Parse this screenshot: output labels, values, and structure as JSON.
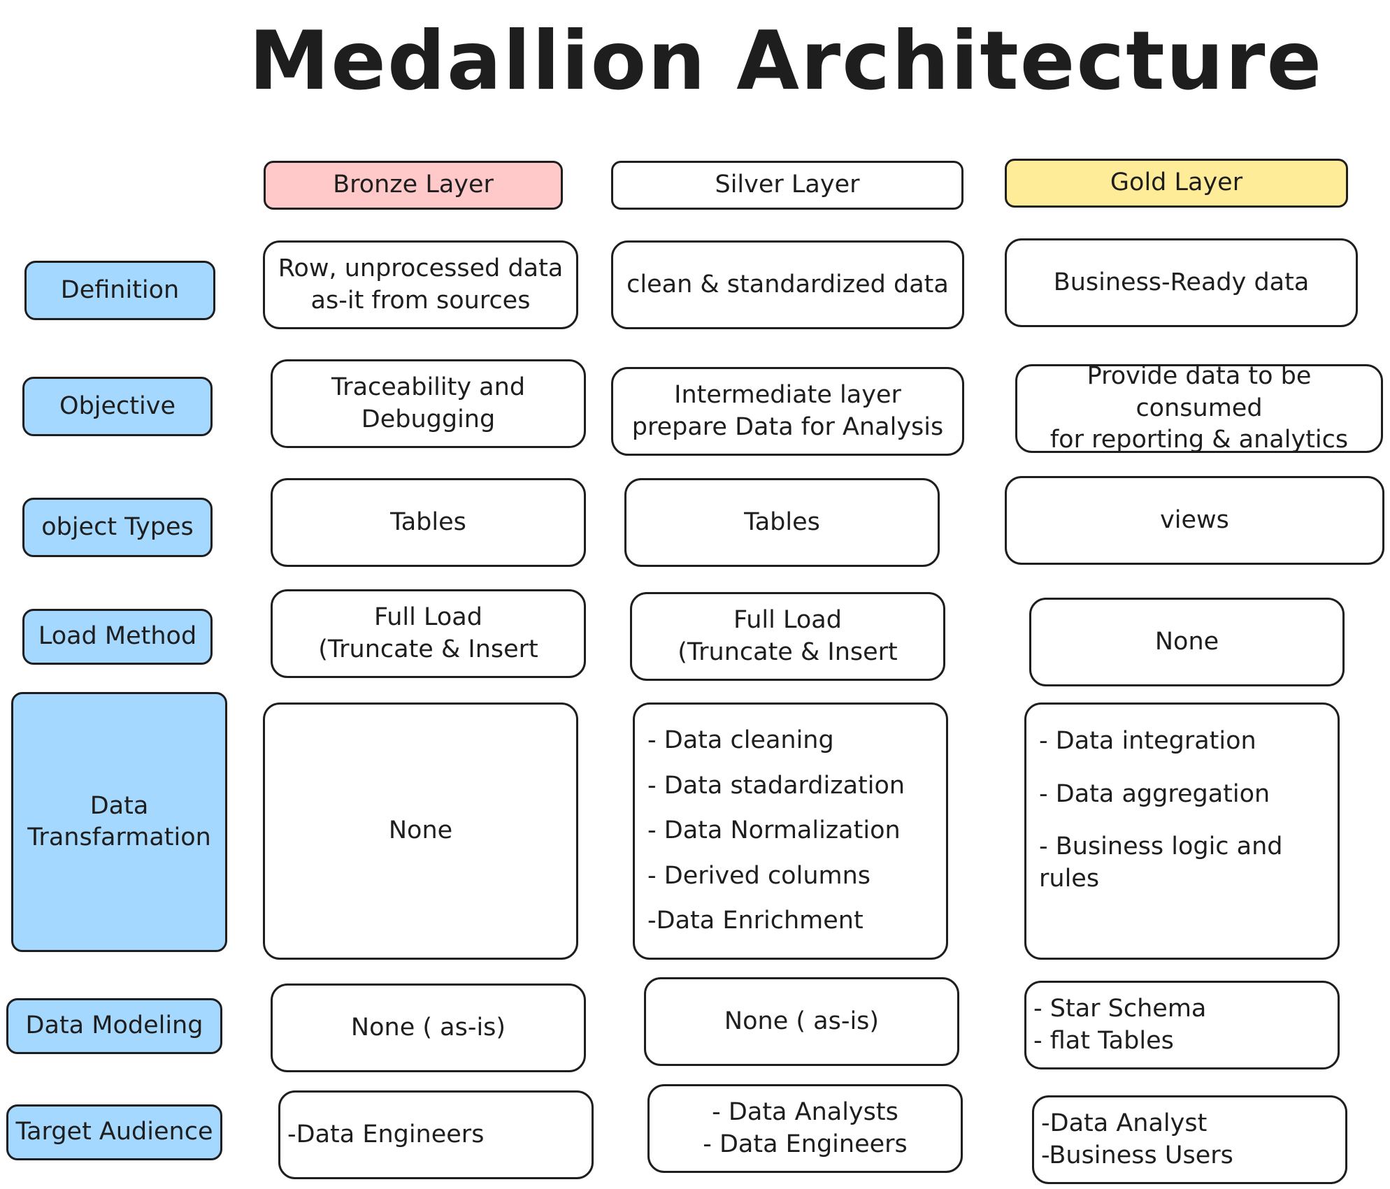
{
  "title": "Medallion Architecture",
  "layers": {
    "bronze": "Bronze Layer",
    "silver": "Silver Layer",
    "gold": "Gold Layer"
  },
  "rows": {
    "definition": {
      "label": "Definition",
      "bronze": "Row, unprocessed data\nas-it from sources",
      "silver": "clean & standardized data",
      "gold": "Business-Ready data"
    },
    "objective": {
      "label": "Objective",
      "bronze": "Traceability and\nDebugging",
      "silver": "Intermediate layer\nprepare Data for Analysis",
      "gold": "Provide data to be consumed\nfor reporting & analytics"
    },
    "object_types": {
      "label": "object Types",
      "bronze": "Tables",
      "silver": "Tables",
      "gold": "views"
    },
    "load_method": {
      "label": "Load Method",
      "bronze": "Full Load\n(Truncate & Insert",
      "silver": "Full Load\n(Truncate & Insert",
      "gold": "None"
    },
    "data_transformation": {
      "label": "Data\nTransfarmation",
      "bronze": "None",
      "silver": [
        "- Data cleaning",
        "- Data stadardization",
        "- Data Normalization",
        "- Derived columns",
        "-Data Enrichment"
      ],
      "gold": [
        "- Data integration",
        "- Data aggregation",
        "- Business logic and\n   rules"
      ]
    },
    "data_modeling": {
      "label": "Data Modeling",
      "bronze": "None ( as-is)",
      "silver": "None ( as-is)",
      "gold": "- Star Schema\n- flat Tables"
    },
    "target_audience": {
      "label": "Target Audience",
      "bronze": "-Data Engineers",
      "silver": " - Data Analysts\n- Data Engineers",
      "gold": "-Data Analyst\n-Business Users"
    }
  },
  "colors": {
    "bronze_fill": "#ffc9c9",
    "gold_fill": "#ffec99",
    "row_label_fill": "#a5d8ff",
    "stroke": "#1e1e1e"
  }
}
